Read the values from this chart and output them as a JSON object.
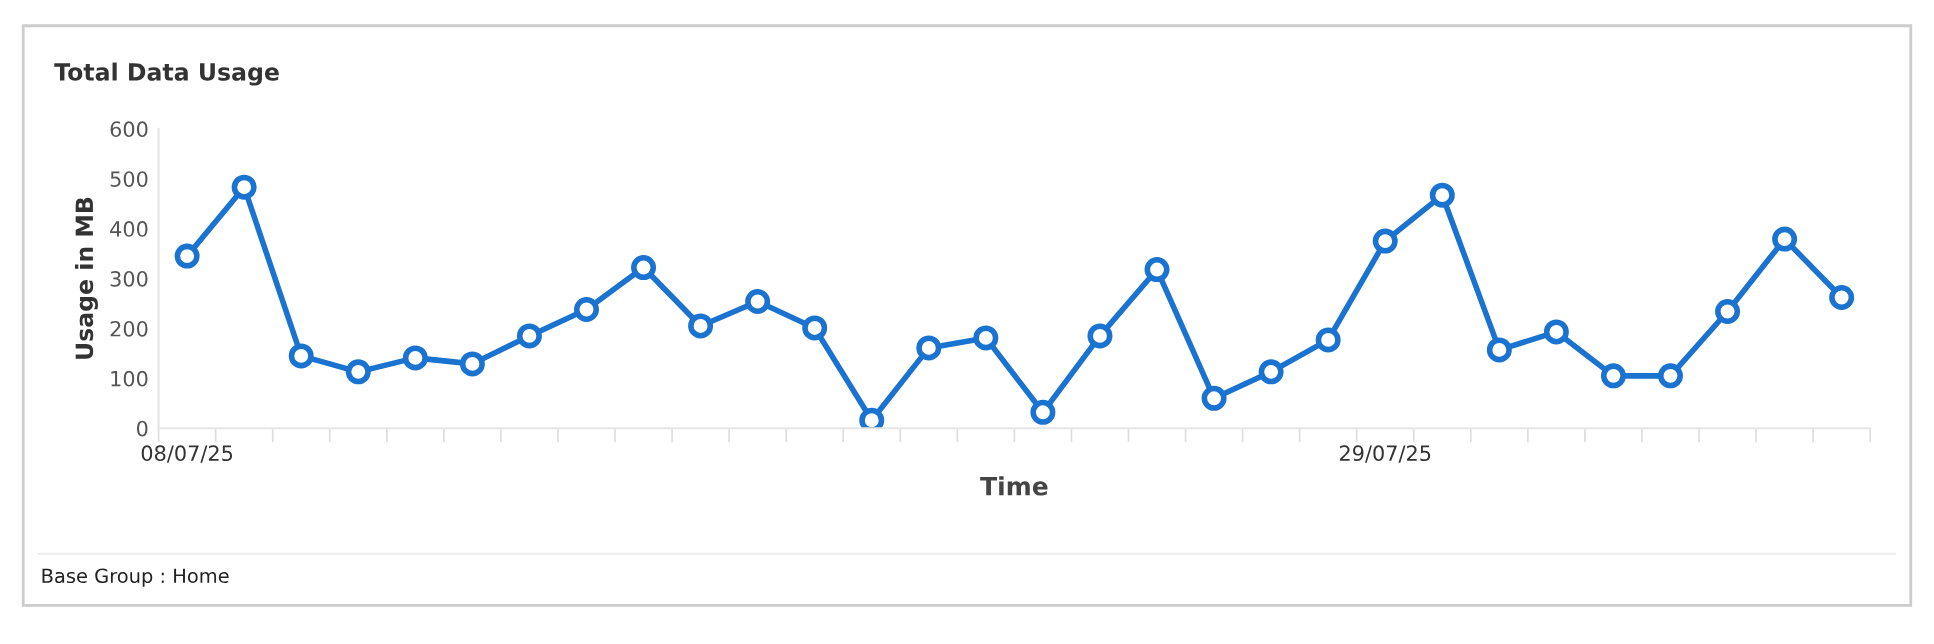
{
  "chart_data": {
    "type": "line",
    "title": "Total Data Usage",
    "xlabel": "Time",
    "ylabel": "Usage in MB",
    "categories": [
      "08/07/25",
      null,
      null,
      null,
      null,
      null,
      null,
      null,
      null,
      null,
      null,
      null,
      null,
      null,
      null,
      null,
      null,
      null,
      null,
      null,
      null,
      "29/07/25",
      null,
      null,
      null,
      null,
      null,
      null,
      null,
      null
    ],
    "series": [
      {
        "color": "#1a73d0",
        "values": [
          345,
          483,
          145,
          113,
          141,
          129,
          185,
          238,
          322,
          205,
          254,
          201,
          16,
          161,
          181,
          32,
          185,
          318,
          60,
          113,
          177,
          375,
          467,
          157,
          193,
          105,
          105,
          234,
          379,
          262
        ]
      }
    ],
    "ylim": [
      0,
      600
    ],
    "yticks": [
      0,
      100,
      200,
      300,
      400,
      500,
      600
    ],
    "grid": false,
    "marker": "circle",
    "line_style": "solid",
    "annotations": [
      "Base Group : Home"
    ]
  }
}
